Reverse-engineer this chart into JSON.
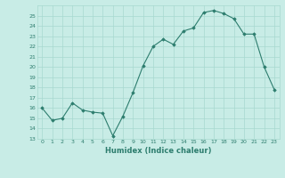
{
  "x": [
    0,
    1,
    2,
    3,
    4,
    5,
    6,
    7,
    8,
    9,
    10,
    11,
    12,
    13,
    14,
    15,
    16,
    17,
    18,
    19,
    20,
    21,
    22,
    23
  ],
  "y": [
    16.0,
    14.8,
    15.0,
    16.5,
    15.8,
    15.6,
    15.5,
    13.3,
    15.2,
    17.5,
    20.1,
    22.0,
    22.7,
    22.2,
    23.5,
    23.8,
    25.3,
    25.5,
    25.2,
    24.7,
    23.2,
    23.2,
    20.0,
    17.8
  ],
  "xlabel": "Humidex (Indice chaleur)",
  "ylim": [
    13,
    26
  ],
  "yticks": [
    13,
    14,
    15,
    16,
    17,
    18,
    19,
    20,
    21,
    22,
    23,
    24,
    25
  ],
  "xlim": [
    -0.5,
    23.5
  ],
  "line_color": "#2d7d6e",
  "marker_color": "#2d7d6e",
  "bg_color": "#c8ece6",
  "grid_color": "#a8d8d0",
  "font_color": "#2d7d6e"
}
